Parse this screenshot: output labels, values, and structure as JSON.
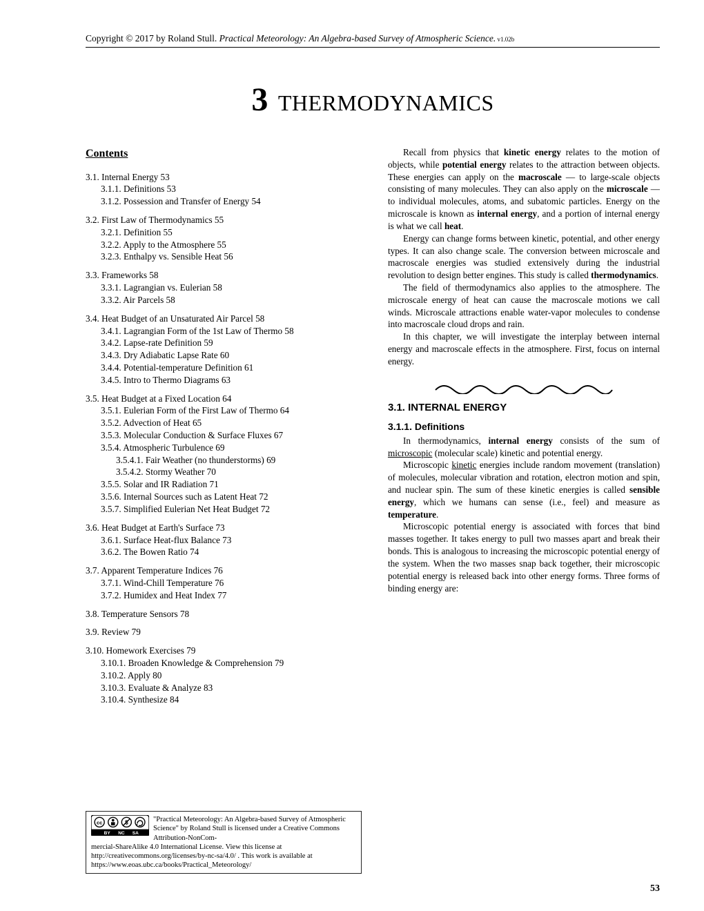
{
  "header": {
    "copyright": "Copyright © 2017 by Roland Stull.  ",
    "title_italic": "Practical Meteorology: An Algebra-based Survey of Atmospheric Science.",
    "version": "  v1.02b"
  },
  "chapter": {
    "num": "3",
    "title": "THERMODYNAMICS"
  },
  "contents_head": "Contents",
  "toc": [
    {
      "cls": "l1",
      "t": "3.1. Internal Energy    53"
    },
    {
      "cls": "l2",
      "t": "3.1.1. Definitions    53"
    },
    {
      "cls": "l2",
      "t": "3.1.2. Possession and Transfer of Energy    54"
    },
    {
      "cls": "sp"
    },
    {
      "cls": "l1",
      "t": "3.2. First Law of Thermodynamics    55"
    },
    {
      "cls": "l2",
      "t": "3.2.1. Definition    55"
    },
    {
      "cls": "l2",
      "t": "3.2.2. Apply to the Atmosphere    55"
    },
    {
      "cls": "l2",
      "t": "3.2.3. Enthalpy vs. Sensible Heat    56"
    },
    {
      "cls": "sp"
    },
    {
      "cls": "l1",
      "t": "3.3. Frameworks    58"
    },
    {
      "cls": "l2",
      "t": "3.3.1. Lagrangian vs. Eulerian       58"
    },
    {
      "cls": "l2",
      "t": "3.3.2. Air Parcels    58"
    },
    {
      "cls": "sp"
    },
    {
      "cls": "l1",
      "t": "3.4. Heat Budget of an Unsaturated Air Parcel    58"
    },
    {
      "cls": "l2",
      "t": "3.4.1. Lagrangian Form of the 1st Law of Thermo    58"
    },
    {
      "cls": "l2",
      "t": "3.4.2. Lapse-rate Definition    59"
    },
    {
      "cls": "l2",
      "t": "3.4.3. Dry Adiabatic Lapse Rate    60"
    },
    {
      "cls": "l2",
      "t": "3.4.4. Potential-temperature Definition    61"
    },
    {
      "cls": "l2",
      "t": "3.4.5. Intro to Thermo Diagrams    63"
    },
    {
      "cls": "sp"
    },
    {
      "cls": "l1",
      "t": "3.5. Heat Budget at a Fixed Location    64"
    },
    {
      "cls": "l2",
      "t": "3.5.1. Eulerian Form of the First Law of Thermo    64"
    },
    {
      "cls": "l2",
      "t": "3.5.2. Advection of Heat    65"
    },
    {
      "cls": "l2",
      "t": "3.5.3. Molecular Conduction & Surface Fluxes    67"
    },
    {
      "cls": "l2",
      "t": "3.5.4. Atmospheric Turbulence    69"
    },
    {
      "cls": "l3",
      "t": "3.5.4.1. Fair Weather (no thunderstorms)    69"
    },
    {
      "cls": "l3",
      "t": "3.5.4.2. Stormy Weather    70"
    },
    {
      "cls": "l2",
      "t": "3.5.5. Solar and IR Radiation    71"
    },
    {
      "cls": "l2",
      "t": "3.5.6. Internal Sources such as Latent Heat    72"
    },
    {
      "cls": "l2",
      "t": "3.5.7. Simplified Eulerian Net Heat Budget    72"
    },
    {
      "cls": "sp"
    },
    {
      "cls": "l1",
      "t": "3.6. Heat Budget at Earth's Surface    73"
    },
    {
      "cls": "l2",
      "t": "3.6.1. Surface Heat-flux Balance    73"
    },
    {
      "cls": "l2",
      "t": "3.6.2. The Bowen Ratio    74"
    },
    {
      "cls": "sp"
    },
    {
      "cls": "l1",
      "t": "3.7. Apparent Temperature Indices    76"
    },
    {
      "cls": "l2",
      "t": "3.7.1. Wind-Chill Temperature    76"
    },
    {
      "cls": "l2",
      "t": "3.7.2. Humidex and Heat Index    77"
    },
    {
      "cls": "sp"
    },
    {
      "cls": "l1",
      "t": "3.8. Temperature Sensors    78"
    },
    {
      "cls": "sp"
    },
    {
      "cls": "l1",
      "t": "3.9. Review    79"
    },
    {
      "cls": "sp"
    },
    {
      "cls": "l1",
      "t": "3.10. Homework Exercises    79"
    },
    {
      "cls": "l2",
      "t": "3.10.1. Broaden Knowledge & Comprehension    79"
    },
    {
      "cls": "l2",
      "t": "3.10.2. Apply    80"
    },
    {
      "cls": "l2",
      "t": "3.10.3. Evaluate & Analyze    83"
    },
    {
      "cls": "l2",
      "t": "3.10.4. Synthesize    84"
    }
  ],
  "body": {
    "p1a": "Recall from physics that ",
    "p1b": "kinetic energy",
    "p1c": " relates to the motion of objects, while ",
    "p1d": "potential energy",
    "p1e": " relates to the attraction between objects.  These energies can apply on the ",
    "p1f": "macroscale",
    "p1g": " — to large-scale objects consisting of many molecules.  They can also apply on the ",
    "p1h": "microscale",
    "p1i": " — to individual molecules, atoms, and subatomic particles.  Energy on the microscale is known as ",
    "p1j": "internal energy",
    "p1k": ", and a portion of internal energy is what we call ",
    "p1l": "heat",
    "p1m": ".",
    "p2": "Energy can change forms between kinetic, potential, and other energy types.  It can also change scale.  The conversion between microscale and macroscale energies was studied extensively during the industrial revolution to design better engines.  This study is called ",
    "p2b": "thermodynamics",
    "p2c": ".",
    "p3": "The field of thermodynamics also applies to the atmosphere.  The microscale energy of heat can cause the macroscale motions we call winds.  Microscale attractions enable water-vapor molecules to condense into macroscale cloud drops and rain.",
    "p4": "In this chapter, we will investigate the interplay between internal energy and macroscale effects in the atmosphere.  First, focus on internal energy.",
    "sec": "3.1. INTERNAL ENERGY",
    "sub": "3.1.1. Definitions",
    "p5a": "In thermodynamics, ",
    "p5b": "internal energy",
    "p5c": " consists of the sum of ",
    "p5d": "microscopic",
    "p5e": " (molecular scale) kinetic and potential energy.",
    "p6a": "Microscopic ",
    "p6b": "kinetic",
    "p6c": " energies include random movement (translation) of molecules, molecular vibration and rotation, electron motion and spin, and nuclear spin.  The sum of these kinetic energies is called ",
    "p6d": "sensible energy",
    "p6e": ", which we humans can sense (i.e., feel) and measure as ",
    "p6f": "temperature",
    "p6g": ".",
    "p7": "Microscopic potential energy is associated with forces that bind masses together. It takes energy to pull two masses apart and break their bonds.  This is analogous to increasing the microscopic potential energy of the system.  When the two masses snap back together, their microscopic potential energy is released back into other energy forms.  Three forms of binding energy are:"
  },
  "license": {
    "l1": "\"Practical Meteorology: An Algebra-based Survey of Atmospheric Science\" by Roland Stull is licensed under a Creative Commons Attribution-NonCom-",
    "l2": "mercial-ShareAlike 4.0 International License.  View this license at http://creativecommons.org/licenses/by-nc-sa/4.0/ .  This work is available at  https://www.eoas.ubc.ca/books/Practical_Meteorology/",
    "badges": [
      "cc",
      "BY",
      "NC",
      "SA"
    ]
  },
  "pagenum": "53"
}
